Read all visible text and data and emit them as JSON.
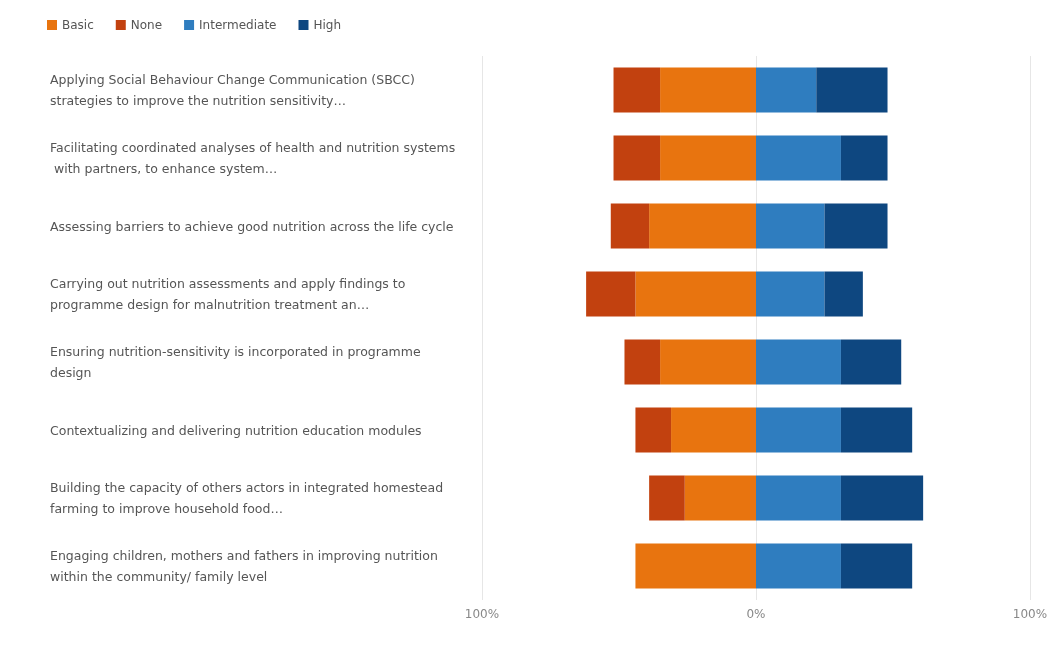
{
  "chart_data": {
    "type": "bar",
    "orientation": "horizontal",
    "stacked": true,
    "categories": [
      "Applying Social Behaviour Change Communication (SBCC) strategies to improve the nutrition sensitivity…",
      "Facilitating coordinated analyses of health and nutrition systems with partners, to enhance system…",
      "Assessing barriers to achieve good nutrition across the life cycle",
      "Carrying out nutrition assessments and apply findings to programme design for malnutrition treatment an…",
      "Ensuring nutrition-sensitivity is incorporated in programme design",
      "Contextualizing and delivering nutrition education modules",
      "Building the capacity of others actors in integrated homestead farming to improve household food…",
      "Engaging children, mothers and fathers in improving nutrition within the community/ family level"
    ],
    "series": [
      {
        "name": "Basic",
        "color": "#e8740f",
        "values": [
          -35,
          -35,
          -39,
          -44,
          -35,
          -31,
          -26,
          -44
        ]
      },
      {
        "name": "None",
        "color": "#c2410f",
        "values": [
          -17,
          -17,
          -14,
          -18,
          -13,
          -13,
          -13,
          0
        ]
      },
      {
        "name": "Intermediate",
        "color": "#2f7dbf",
        "values": [
          22,
          31,
          25,
          25,
          31,
          31,
          31,
          31
        ]
      },
      {
        "name": "High",
        "color": "#0e4780",
        "values": [
          26,
          17,
          23,
          14,
          22,
          26,
          30,
          26
        ]
      }
    ],
    "xlim": [
      -100,
      100
    ],
    "xticks": [
      {
        "value": -100,
        "label": "100%"
      },
      {
        "value": 0,
        "label": "0%"
      },
      {
        "value": 100,
        "label": "100%"
      }
    ],
    "grid": "x",
    "legend": "top left"
  }
}
